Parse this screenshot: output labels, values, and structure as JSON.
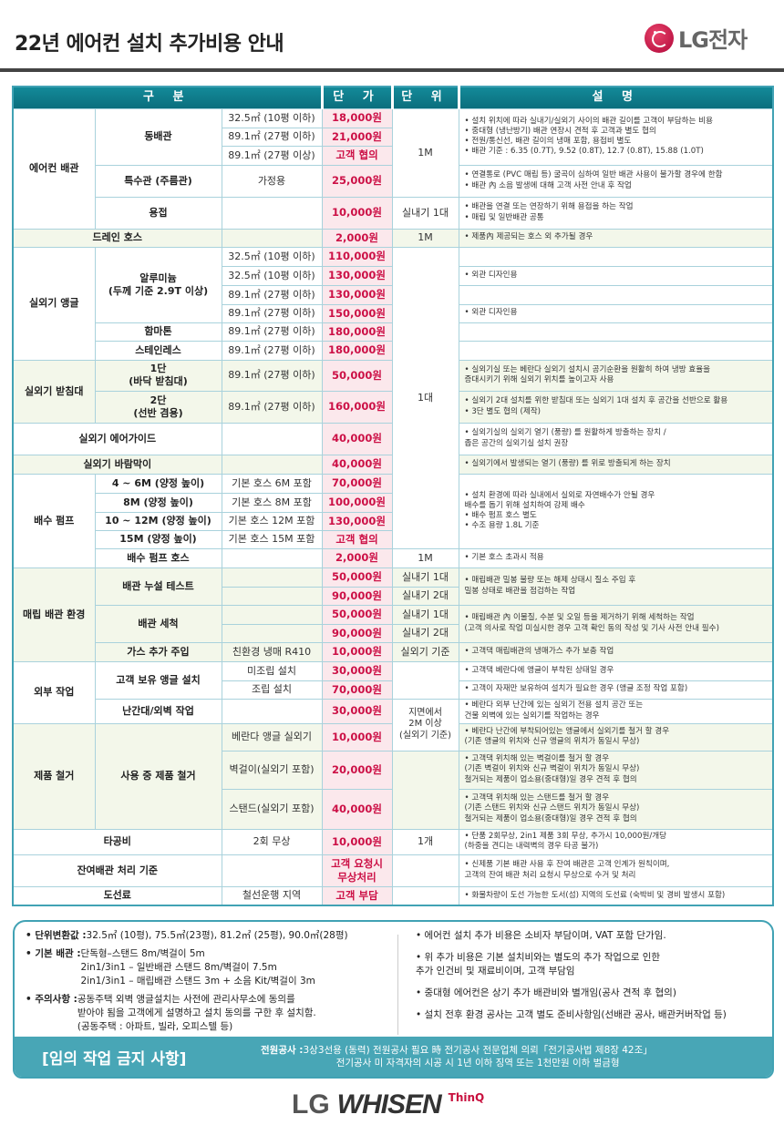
{
  "header": {
    "title": "22년 에어컨 설치 추가비용 안내",
    "logo_text": "LG전자"
  },
  "colors": {
    "accent": "#41a2b4",
    "price": "#cc1046",
    "price_bg": "#fbe8ec",
    "brand_red": "#b0073a"
  },
  "table": {
    "headers": {
      "category": "구 분",
      "price": "단 가",
      "unit": "단 위",
      "desc": "설 명"
    },
    "rows": [
      {
        "cat": "에어컨 배관",
        "item": "동배관",
        "spec": "32.5㎡ (10평 이하)",
        "price": "18,000원",
        "unit": "1M",
        "desc": "• 설치 위치에 따라 실내기/실외기 사이의 배관 길이를 고객이 부담하는 비용\n• 중대형 (냉난방기) 배관 연장시 견적 후 고객과 별도 협의\n• 전원/통신선, 배관 길이의 냉매 포함, 용접비 별도\n• 배관 기준 : 6.35 (0.7T), 9.52 (0.8T), 12.7 (0.8T), 15.88 (1.0T)"
      },
      {
        "spec": "89.1㎡ (27평 이하)",
        "price": "21,000원"
      },
      {
        "spec": "89.1㎡ (27평 이상)",
        "price": "고객 협의"
      },
      {
        "item": "특수관 (주름관)",
        "spec": "가정용",
        "price": "25,000원",
        "desc": "• 연결통로 (PVC 매립 등) 굴곡이 심하여 일반 배관 사용이 불가할 경우에 한함\n• 배관 內 소음 발생에 대해 고객 사전 안내 후 작업"
      },
      {
        "item": "용접",
        "price": "10,000원",
        "unit": "실내기 1대",
        "desc": "• 배관을 연결 또는 연장하기 위해 용접을 하는 작업\n• 매립 및 일반배관 공통"
      },
      {
        "cat": "드레인 호스",
        "price": "2,000원",
        "unit": "1M",
        "desc": "• 제품內 제공되는 호스 외 추가될 경우"
      },
      {
        "cat": "실외기 앵글",
        "item": "알루미늄\n(두께 기준 2.9T 이상)",
        "spec": "32.5㎡ (10평 이하)",
        "price": "110,000원",
        "unit": "1대"
      },
      {
        "spec": "32.5㎡ (10평 이하)",
        "price": "130,000원",
        "desc": "• 외관 디자인용"
      },
      {
        "spec": "89.1㎡ (27평 이하)",
        "price": "130,000원"
      },
      {
        "spec": "89.1㎡ (27평 이하)",
        "price": "150,000원",
        "desc": "• 외관 디자인용"
      },
      {
        "item": "함마톤",
        "spec": "89.1㎡ (27평 이하)",
        "price": "180,000원"
      },
      {
        "item": "스테인레스",
        "spec": "89.1㎡ (27평 이하)",
        "price": "180,000원"
      },
      {
        "cat": "실외기 받침대",
        "item": "1단\n(바닥 받침대)",
        "spec": "89.1㎡ (27평 이하)",
        "price": "50,000원",
        "desc": "• 실외기실 또는 베란다 실외기 설치시 공기순환을 원활히 하여 냉방 효율을\n   증대시키기 위해 실외기 위치를 높이고자 사용"
      },
      {
        "item": "2단\n(선반 겸용)",
        "spec": "89.1㎡ (27평 이하)",
        "price": "160,000원",
        "desc": "• 실외기 2대 설치를 위한 받침대 또는 실외기 1대 설치 후 공간을 선반으로 활용\n• 3단 별도 협의 (제작)"
      },
      {
        "cat": "실외기 에어가이드",
        "price": "40,000원",
        "desc": "• 실외기실의 실외기 열기 (풍량) 를 원활하게 방출하는 장치 /\n   좁은 공간의 실외기실 설치 권장"
      },
      {
        "cat": "실외기 바람막이",
        "price": "40,000원",
        "desc": "• 실외기에서 발생되는 열기 (풍량) 를 위로 방출되게 하는 장치"
      },
      {
        "cat": "배수 펌프",
        "item": "4 ~ 6M (양정 높이)",
        "spec": "기본 호스 6M 포함",
        "price": "70,000원",
        "desc": "• 설치 환경에 따라 실내에서 실외로 자연배수가 안될 경우\n   배수를 돕기 위해 설치하여 강제 배수\n• 배수 펌프 호스 별도\n• 수조 용량 1.8L 기준"
      },
      {
        "item": "8M (양정 높이)",
        "spec": "기본 호스 8M 포함",
        "price": "100,000원"
      },
      {
        "item": "10 ~ 12M (양정 높이)",
        "spec": "기본 호스 12M 포함",
        "price": "130,000원"
      },
      {
        "item": "15M (양정 높이)",
        "spec": "기본 호스 15M 포함",
        "price": "고객 협의"
      },
      {
        "item": "배수 펌프 호스",
        "price": "2,000원",
        "unit": "1M",
        "desc": "• 기본 호스 초과시 적용"
      },
      {
        "cat": "매립 배관 환경",
        "item": "배관 누설 테스트",
        "price": "50,000원",
        "unit": "실내기 1대",
        "desc": "• 매립배관 밀봉 불량 또는 해제 상태시 질소 주입 후\n   밀봉 상태로 배관을 점검하는 작업"
      },
      {
        "price": "90,000원",
        "unit": "실내기 2대"
      },
      {
        "item": "배관 세척",
        "price": "50,000원",
        "unit": "실내기 1대",
        "desc": "• 매립배관 內 이물질, 수분 및 오일 등을 제거하기 위해 세척하는 작업\n   (고객 의사로 작업 미실시한 경우 고객 확인 동의 작성 및 기사 사전 안내 필수)"
      },
      {
        "price": "90,000원",
        "unit": "실내기 2대"
      },
      {
        "item": "가스 추가 주입",
        "spec": "친환경 냉매 R410",
        "price": "10,000원",
        "unit": "실외기 기준",
        "desc": "• 고객댁 매립배관의 냉매가스 추가 보충 작업"
      },
      {
        "cat": "외부 작업",
        "item": "고객 보유 앵글 설치",
        "spec": "미조립 설치",
        "price": "30,000원",
        "desc": "• 고객댁 베란다에 앵글이 부착된 상태일 경우"
      },
      {
        "spec": "조립 설치",
        "price": "70,000원",
        "desc": "• 고객이 자재만 보유하여 설치가 필요한 경우 (앵글 조정 작업 포함)"
      },
      {
        "item": "난간대/외벽 작업",
        "price": "30,000원",
        "unit": "지면에서\n2M 이상\n(실외기 기준)",
        "desc": "• 베란다 외부 난간에 있는 실외기 전용 설치 공간 또는\n   건물 외벽에 있는 실외기를 작업하는 경우"
      },
      {
        "cat": "제품 철거",
        "item": "사용 중 제품 철거",
        "spec": "베란다 앵글 실외기",
        "price": "10,000원",
        "desc": "• 베란다 난간에 부착되어있는 앵글에서 실외기를 철거 할 경우\n   (기존 앵글의 위치와 신규 앵글의 위치가 동일시 무상)"
      },
      {
        "spec": "벽걸이(실외기 포함)",
        "price": "20,000원",
        "desc": "• 고객댁 위치해 있는 벽걸이를 철거 할 경우\n   (기존 벽걸이 위치와 신규 벽걸이 위치가 동일시 무상)\n   철거되는 제품이 업소용(중대형)일 경우 견적 후 협의"
      },
      {
        "spec": "스탠드(실외기 포함)",
        "price": "40,000원",
        "desc": "• 고객댁 위치해 있는 스탠드를 철거 할 경우\n   (기존 스탠드 위치와 신규 스탠드 위치가 동일시 무상)\n   철거되는 제품이 업소용(중대형)일 경우 견적 후 협의"
      },
      {
        "cat": "타공비",
        "spec": "2회 무상",
        "price": "10,000원",
        "unit": "1개",
        "desc": "• 단품 2회무상, 2in1 제품 3회 무상, 추가시 10,000원/개당\n   (하중을 견디는 내력벽의 경우 타공 불가)"
      },
      {
        "cat": "잔여배관 처리 기준",
        "price": "고객 요청시\n무상처리",
        "desc": "• 신제품 기본 배관 사용 후 잔여 배관은 고객 인계가 원칙이며,\n   고객의 잔여 배관 처리 요청시 무상으로 수거 및 처리"
      },
      {
        "cat": "도선료",
        "spec": "철선운행 지역",
        "price": "고객 부담",
        "desc": "• 화물차량이 도선 가능한 도서(섬) 지역의 도선료 (숙박비 및 경비 발생시 포함)"
      }
    ]
  },
  "notes": {
    "left": [
      {
        "label": "• 단위변환값 : ",
        "text": "32.5㎡ (10평), 75.5㎡(23평), 81.2㎡ (25평), 90.0㎡(28평)"
      },
      {
        "label": "• 기본 배관 : ",
        "text": "단독형–스탠드 8m/벽걸이 5m\n2in1/3in1 – 일반배관 스탠드 8m/벽걸이 7.5m\n2in1/3in1 – 매립배관 스탠드 3m + 소음 Kit/벽걸이 3m"
      },
      {
        "label": "• 주의사항 : ",
        "text": "공동주택 외벽 앵글설치는 사전에 관리사무소에 동의를\n받아야 됨을 고객에게 설명하고 설치 동의를 구한 후 설치함.\n(공동주택 : 아파트, 빌라, 오피스텔 등)"
      }
    ],
    "right": [
      "• 에어컨 설치 추가 비용은 소비자 부담이며, VAT 포함 단가임.",
      "• 위 추가 비용은 기본 설치비와는 별도의 추가 작업으로 인한\n   추가 인건비 및 재료비이며, 고객 부담임",
      "• 중대형 에어컨은 상기 추가 배관비와 별개임(공사 견적 후 협의)",
      "• 설치 전후 환경 공사는 고객 별도 준비사항임(선배관 공사, 배관커버작업 등)"
    ],
    "banner": {
      "heading": "[임의 작업 금지 사항]",
      "label": "전원공사 : ",
      "text": "3상3선용 (동력) 전원공사 필요 時 전기공사 전문업체 의뢰「전기공사법 제8장 42조」\n전기공사 미 자격자의 시공 시 1년 이하 징역 또는 1천만원 이하 벌금형"
    }
  },
  "footer": {
    "lg": "LG",
    "brand": "WHISEN",
    "sub": "ThinQ"
  }
}
